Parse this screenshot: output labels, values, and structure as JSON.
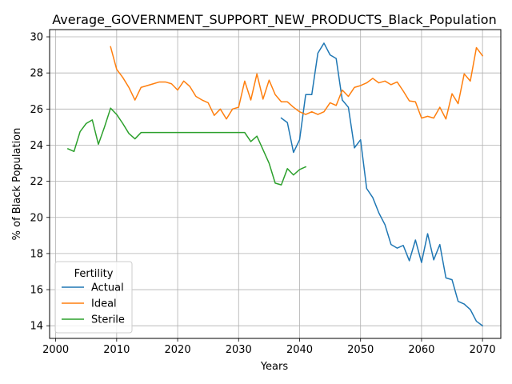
{
  "chart_data": {
    "type": "line",
    "title": "Average_GOVERNMENT_SUPPORT_NEW_PRODUCTS_Black_Population",
    "xlabel": "Years",
    "ylabel": "% of Black Population",
    "xlim": [
      1999,
      2073
    ],
    "ylim": [
      13.3,
      30.4
    ],
    "xticks": [
      2000,
      2010,
      2020,
      2030,
      2040,
      2050,
      2060,
      2070
    ],
    "yticks": [
      14,
      16,
      18,
      20,
      22,
      24,
      26,
      28,
      30
    ],
    "grid": true,
    "legend": {
      "title": "Fertility",
      "placement": "lower-left"
    },
    "colors": {
      "Actual": "#1f77b4",
      "Ideal": "#ff7f0e",
      "Sterile": "#2ca02c"
    },
    "series": [
      {
        "name": "Actual",
        "x": [
          2037,
          2038,
          2039,
          2040,
          2041,
          2042,
          2043,
          2044,
          2045,
          2046,
          2047,
          2048,
          2049,
          2050,
          2051,
          2052,
          2053,
          2054,
          2055,
          2056,
          2057,
          2058,
          2059,
          2060,
          2061,
          2062,
          2063,
          2064,
          2065,
          2066,
          2067,
          2068,
          2069,
          2070
        ],
        "y": [
          25.5,
          25.25,
          23.6,
          24.3,
          26.8,
          26.8,
          29.1,
          29.65,
          29.0,
          28.8,
          26.5,
          26.1,
          23.85,
          24.3,
          21.6,
          21.1,
          20.25,
          19.6,
          18.5,
          18.3,
          18.45,
          17.6,
          18.75,
          17.5,
          19.1,
          17.65,
          18.5,
          16.65,
          16.55,
          15.35,
          15.2,
          14.9,
          14.25,
          14.0
        ]
      },
      {
        "name": "Ideal",
        "x": [
          2009,
          2010,
          2011,
          2012,
          2013,
          2014,
          2015,
          2016,
          2017,
          2018,
          2019,
          2020,
          2021,
          2022,
          2023,
          2024,
          2025,
          2026,
          2027,
          2028,
          2029,
          2030,
          2031,
          2032,
          2033,
          2034,
          2035,
          2036,
          2037,
          2038,
          2039,
          2040,
          2041,
          2042,
          2043,
          2044,
          2045,
          2046,
          2047,
          2048,
          2049,
          2050,
          2051,
          2052,
          2053,
          2054,
          2055,
          2056,
          2057,
          2058,
          2059,
          2060,
          2061,
          2062,
          2063,
          2064,
          2065,
          2066,
          2067,
          2068,
          2069,
          2070
        ],
        "y": [
          29.45,
          28.2,
          27.75,
          27.2,
          26.5,
          27.2,
          27.3,
          27.4,
          27.5,
          27.5,
          27.4,
          27.05,
          27.55,
          27.25,
          26.7,
          26.5,
          26.35,
          25.65,
          26.0,
          25.45,
          26.0,
          26.1,
          27.55,
          26.5,
          27.95,
          26.55,
          27.6,
          26.8,
          26.4,
          26.4,
          26.1,
          25.85,
          25.7,
          25.85,
          25.7,
          25.85,
          26.35,
          26.2,
          27.05,
          26.7,
          27.2,
          27.3,
          27.45,
          27.7,
          27.45,
          27.55,
          27.35,
          27.5,
          27.0,
          26.45,
          26.4,
          25.5,
          25.6,
          25.5,
          26.1,
          25.45,
          26.85,
          26.3,
          27.95,
          27.55,
          29.4,
          28.95
        ]
      },
      {
        "name": "Sterile",
        "x": [
          2002,
          2003,
          2004,
          2005,
          2006,
          2007,
          2008,
          2009,
          2010,
          2011,
          2012,
          2013,
          2014,
          2015,
          2016,
          2017,
          2018,
          2019,
          2020,
          2021,
          2022,
          2023,
          2024,
          2025,
          2026,
          2027,
          2028,
          2029,
          2030,
          2031,
          2032,
          2033,
          2034,
          2035,
          2036,
          2037,
          2038,
          2039,
          2040,
          2041
        ],
        "y": [
          23.8,
          23.65,
          24.75,
          25.2,
          25.4,
          24.05,
          25.0,
          26.05,
          25.7,
          25.2,
          24.65,
          24.35,
          24.7,
          24.7,
          24.7,
          24.7,
          24.7,
          24.7,
          24.7,
          24.7,
          24.7,
          24.7,
          24.7,
          24.7,
          24.7,
          24.7,
          24.7,
          24.7,
          24.7,
          24.7,
          24.2,
          24.5,
          23.75,
          23.0,
          21.9,
          21.8,
          22.7,
          22.35,
          22.65,
          22.8
        ]
      }
    ]
  }
}
